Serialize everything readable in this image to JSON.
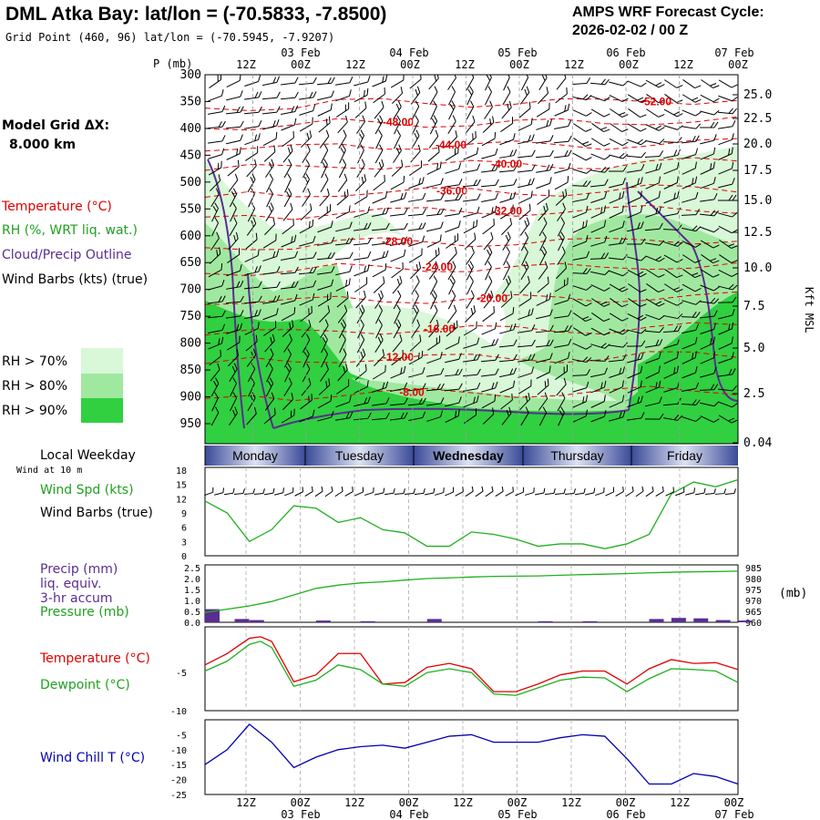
{
  "header": {
    "title": "DML Atka Bay:  lat/lon = (-70.5833, -7.8500)",
    "gridpoint": "Grid Point (460, 96) lat/lon = (-70.5945, -7.9207)",
    "cycle_line1": "AMPS WRF Forecast Cycle:",
    "cycle_line2": "2026-02-02 / 00  Z"
  },
  "left_labels": {
    "model_grid_line1": "Model Grid ΔX:",
    "model_grid_line2": "8.000 km",
    "temperature": "Temperature (°C)",
    "rh": "RH (%, WRT liq. wat.)",
    "cloud": "Cloud/Precip Outline",
    "wind_barbs": "Wind Barbs (kts) (true)",
    "rh_legend": [
      "RH > 70%",
      "RH > 80%",
      "RH > 90%"
    ],
    "local_weekday": "Local Weekday",
    "wind_10m": "Wind at 10 m",
    "wind_spd": "Wind Spd (kts)",
    "wind_barbs2": "Wind Barbs (true)",
    "precip_line1": "Precip (mm)",
    "precip_line2": "liq. equiv.",
    "precip_line3": "3-hr accum",
    "pressure": "Pressure (mb)",
    "temp2": "Temperature (°C)",
    "dewpoint": "Dewpoint (°C)",
    "windchill": "Wind Chill T (°C)"
  },
  "colors": {
    "temperature": "#e00000",
    "rh_green": "#20b020",
    "cloud_outline": "#5a2d90",
    "rh70": "#d8f8d8",
    "rh80": "#a0e8a0",
    "rh90": "#30d040",
    "wind_chill": "#0000b0",
    "precip_bar": "#5a2d90"
  },
  "time_axis": {
    "top_hours": [
      "12Z",
      "00Z",
      "12Z",
      "00Z",
      "12Z",
      "00Z",
      "12Z",
      "00Z",
      "12Z",
      "00Z"
    ],
    "top_dates": [
      "03 Feb",
      "04 Feb",
      "05 Feb",
      "06 Feb",
      "07 Feb"
    ],
    "bottom_hours": [
      "12Z",
      "00Z",
      "12Z",
      "00Z",
      "12Z",
      "00Z",
      "12Z",
      "00Z",
      "12Z",
      "00Z"
    ],
    "bottom_dates": [
      "03 Feb",
      "04 Feb",
      "05 Feb",
      "06 Feb",
      "07 Feb"
    ]
  },
  "weekdays": [
    "Monday",
    "Tuesday",
    "Wednesday",
    "Thursday",
    "Friday"
  ],
  "chart_data": [
    {
      "type": "heatmap",
      "ylabel": "P (mb)",
      "y2label": "Kft MSL",
      "pressure_ticks": [
        300,
        350,
        400,
        450,
        500,
        550,
        600,
        650,
        700,
        750,
        800,
        850,
        900,
        950
      ],
      "height_ticks": [
        "25.0",
        "22.5",
        "20.0",
        "17.5",
        "15.0",
        "12.5",
        "10.0",
        "7.5",
        "5.0",
        "2.5",
        "0.04"
      ],
      "temperature_contours": [
        {
          "label": "-52.00",
          "p": 352
        },
        {
          "label": "-48.00",
          "p": 390
        },
        {
          "label": "-44.00",
          "p": 432
        },
        {
          "label": "-40.00",
          "p": 468
        },
        {
          "label": "-36.00",
          "p": 518
        },
        {
          "label": "-32.00",
          "p": 555
        },
        {
          "label": "-28.00",
          "p": 612
        },
        {
          "label": "-24.00",
          "p": 660
        },
        {
          "label": "-20.00",
          "p": 718
        },
        {
          "label": "-16.00",
          "p": 775
        },
        {
          "label": "-12.00",
          "p": 828
        },
        {
          "label": "-8.00",
          "p": 893
        }
      ]
    },
    {
      "type": "line",
      "ylabel": "Wind Spd (kts)",
      "yticks": [
        0,
        3,
        6,
        9,
        12,
        15,
        18
      ],
      "ylim": [
        0,
        18
      ],
      "x_hours": [
        0,
        6,
        12,
        18,
        24,
        30,
        36,
        42,
        48,
        54,
        60,
        66,
        72,
        78,
        84,
        90,
        96,
        102,
        108,
        114,
        120,
        126,
        132,
        138,
        144
      ],
      "wind_speed": [
        11.5,
        9,
        3,
        5.5,
        10.5,
        10,
        7,
        8,
        5.5,
        4.8,
        2,
        2,
        5,
        4.5,
        3.5,
        2,
        2.5,
        2.5,
        1.5,
        2.5,
        4.5,
        13,
        15.5,
        14.5,
        16
      ]
    },
    {
      "type": "bar",
      "ylabel": "Precip (mm)",
      "yticks": [
        "0.0",
        "0.5",
        "1.0",
        "1.5",
        "2.0",
        "2.5"
      ],
      "ylim": [
        0,
        2.5
      ],
      "y2ticks": [
        960,
        965,
        970,
        975,
        980,
        985
      ],
      "y2lim": [
        960,
        985
      ],
      "x_hours": [
        0,
        6,
        12,
        18,
        24,
        30,
        36,
        42,
        48,
        54,
        60,
        66,
        72,
        78,
        84,
        90,
        96,
        102,
        108,
        114,
        120,
        126,
        132,
        138,
        144
      ],
      "pressure": [
        964.5,
        966,
        967.5,
        969.5,
        972.5,
        975.5,
        977,
        978,
        978.5,
        979.3,
        980,
        980.3,
        980.7,
        981,
        981.1,
        981.2,
        981.5,
        981.8,
        982,
        982.3,
        982.6,
        982.9,
        983.1,
        983.2,
        983.4
      ],
      "precip_x": [
        0,
        8,
        12,
        30,
        42,
        60,
        90,
        102,
        120,
        126,
        132,
        138,
        144
      ],
      "precip": [
        0.6,
        0.15,
        0.1,
        0.08,
        0.05,
        0.15,
        0.05,
        0.05,
        0.15,
        0.2,
        0.18,
        0.1,
        0.08
      ]
    },
    {
      "type": "line",
      "yticks": [
        -5,
        -10
      ],
      "ylim": [
        -10,
        1
      ],
      "x_hours": [
        0,
        6,
        12,
        15,
        18,
        24,
        30,
        36,
        42,
        48,
        54,
        60,
        66,
        72,
        78,
        84,
        90,
        96,
        102,
        108,
        114,
        120,
        126,
        132,
        138,
        144
      ],
      "series": [
        {
          "name": "Temperature (°C)",
          "values": [
            -4,
            -2.5,
            -0.5,
            -0.3,
            -0.9,
            -6.2,
            -5.3,
            -2.5,
            -2.5,
            -6.5,
            -6.3,
            -4.3,
            -3.8,
            -4.5,
            -7.5,
            -7.5,
            -6.5,
            -5.3,
            -4.8,
            -4.8,
            -6.5,
            -4.5,
            -3.3,
            -3.8,
            -3.7,
            -4.6
          ],
          "dewpoint": [
            -4.8,
            -3.5,
            -1.3,
            -0.9,
            -1.7,
            -6.8,
            -6.0,
            -4.0,
            -4.6,
            -6.5,
            -6.8,
            -5.0,
            -4.5,
            -5.0,
            -7.8,
            -8.0,
            -7.0,
            -6.0,
            -5.6,
            -5.7,
            -7.5,
            -5.8,
            -4.5,
            -4.6,
            -4.8,
            -6.3
          ]
        }
      ]
    },
    {
      "type": "line",
      "ylabel": "Wind Chill T (°C)",
      "yticks": [
        -5,
        -10,
        -15,
        -20,
        -25
      ],
      "ylim": [
        -25,
        0
      ],
      "x_hours": [
        0,
        6,
        12,
        18,
        24,
        30,
        36,
        42,
        48,
        54,
        60,
        66,
        72,
        78,
        84,
        90,
        96,
        102,
        108,
        114,
        120,
        126,
        132,
        138,
        144
      ],
      "values": [
        -15,
        -10,
        -1.5,
        -7.5,
        -16,
        -12.5,
        -10,
        -9,
        -8.5,
        -9.5,
        -7.5,
        -5.5,
        -5,
        -7.5,
        -7.5,
        -7.5,
        -6,
        -5,
        -5.5,
        -13,
        -21.5,
        -21.5,
        -18,
        -19,
        -21.5
      ]
    }
  ]
}
